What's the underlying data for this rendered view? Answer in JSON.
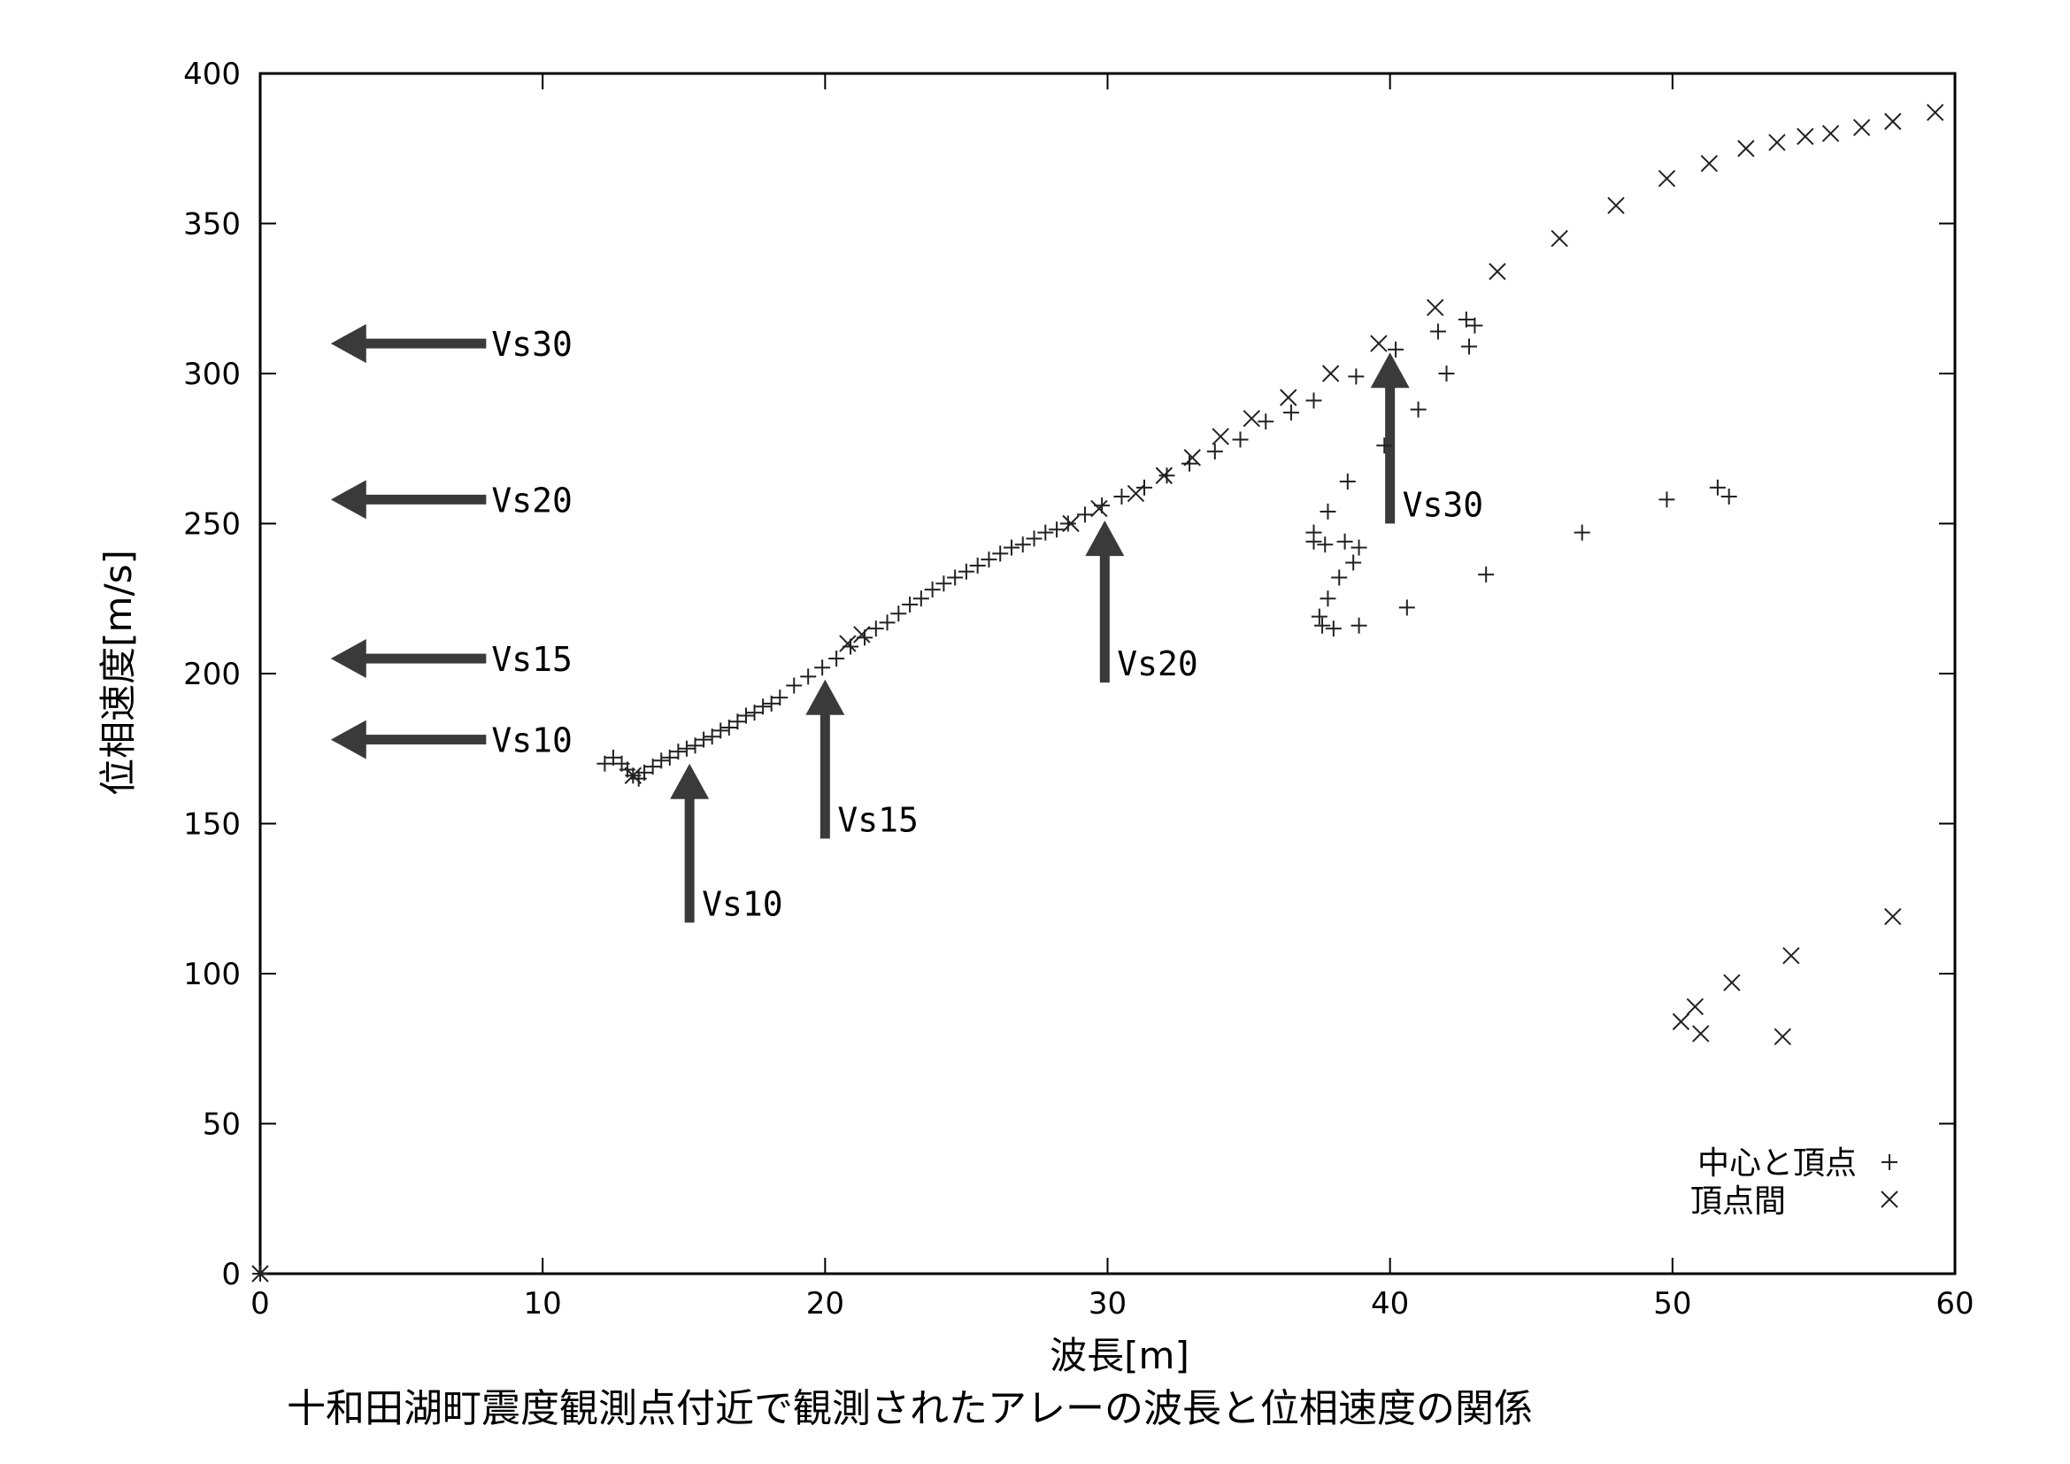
{
  "chart_data": {
    "type": "scatter",
    "title": "",
    "caption": "十和田湖町震度観測点付近で観測されたアレーの波長と位相速度の関係",
    "xlabel": "波長[m]",
    "ylabel": "位相速度[m/s]",
    "xlim": [
      0,
      60
    ],
    "ylim": [
      0,
      400
    ],
    "xticks": [
      "0",
      "10",
      "20",
      "30",
      "40",
      "50",
      "60"
    ],
    "yticks": [
      "0",
      "50",
      "100",
      "150",
      "200",
      "250",
      "300",
      "350",
      "400"
    ],
    "grid": false,
    "legend_position": "bottom-right",
    "series": [
      {
        "name": "中心と頂点",
        "marker": "+",
        "points": [
          [
            0,
            0
          ],
          [
            12.2,
            170
          ],
          [
            12.5,
            172
          ],
          [
            12.8,
            170
          ],
          [
            13.0,
            168
          ],
          [
            13.2,
            166
          ],
          [
            13.4,
            165
          ],
          [
            13.6,
            167
          ],
          [
            13.9,
            169
          ],
          [
            14.2,
            171
          ],
          [
            14.5,
            172
          ],
          [
            14.8,
            174
          ],
          [
            15.1,
            175
          ],
          [
            15.4,
            176
          ],
          [
            15.7,
            178
          ],
          [
            16.0,
            179
          ],
          [
            16.3,
            181
          ],
          [
            16.6,
            182
          ],
          [
            16.9,
            184
          ],
          [
            17.2,
            186
          ],
          [
            17.5,
            187
          ],
          [
            17.8,
            189
          ],
          [
            18.1,
            190
          ],
          [
            18.4,
            192
          ],
          [
            18.9,
            196
          ],
          [
            19.4,
            199
          ],
          [
            19.9,
            202
          ],
          [
            20.4,
            205
          ],
          [
            20.9,
            209
          ],
          [
            21.4,
            212
          ],
          [
            21.8,
            215
          ],
          [
            22.2,
            217
          ],
          [
            22.6,
            220
          ],
          [
            23.0,
            223
          ],
          [
            23.4,
            225
          ],
          [
            23.8,
            228
          ],
          [
            24.2,
            230
          ],
          [
            24.6,
            232
          ],
          [
            25.0,
            234
          ],
          [
            25.4,
            236
          ],
          [
            25.8,
            238
          ],
          [
            26.2,
            240
          ],
          [
            26.6,
            242
          ],
          [
            27.0,
            243
          ],
          [
            27.4,
            245
          ],
          [
            27.8,
            247
          ],
          [
            28.2,
            248
          ],
          [
            28.6,
            250
          ],
          [
            29.2,
            253
          ],
          [
            29.8,
            256
          ],
          [
            30.5,
            259
          ],
          [
            31.3,
            262
          ],
          [
            32.1,
            266
          ],
          [
            32.9,
            270
          ],
          [
            33.8,
            274
          ],
          [
            34.7,
            278
          ],
          [
            35.6,
            284
          ],
          [
            36.5,
            287
          ],
          [
            37.3,
            291
          ],
          [
            37.3,
            247
          ],
          [
            37.3,
            244
          ],
          [
            37.5,
            219
          ],
          [
            37.6,
            216
          ],
          [
            37.7,
            243
          ],
          [
            37.8,
            225
          ],
          [
            37.8,
            254
          ],
          [
            38.0,
            215
          ],
          [
            38.2,
            232
          ],
          [
            38.4,
            244
          ],
          [
            38.5,
            264
          ],
          [
            38.7,
            237
          ],
          [
            38.9,
            242
          ],
          [
            38.9,
            216
          ],
          [
            38.8,
            299
          ],
          [
            39.8,
            276
          ],
          [
            40.2,
            308
          ],
          [
            40.6,
            222
          ],
          [
            41.0,
            288
          ],
          [
            41.7,
            314
          ],
          [
            42.0,
            300
          ],
          [
            42.7,
            318
          ],
          [
            42.8,
            309
          ],
          [
            43.0,
            316
          ],
          [
            43.4,
            233
          ],
          [
            46.8,
            247
          ],
          [
            49.8,
            258
          ],
          [
            51.6,
            262
          ],
          [
            52.0,
            259
          ]
        ]
      },
      {
        "name": "頂点間",
        "marker": "x",
        "points": [
          [
            0,
            0
          ],
          [
            13.2,
            166
          ],
          [
            20.8,
            210
          ],
          [
            21.3,
            213
          ],
          [
            28.7,
            250
          ],
          [
            29.7,
            255
          ],
          [
            31.0,
            260
          ],
          [
            32.0,
            266
          ],
          [
            33.0,
            272
          ],
          [
            34.0,
            279
          ],
          [
            35.1,
            285
          ],
          [
            36.4,
            292
          ],
          [
            37.9,
            300
          ],
          [
            39.6,
            310
          ],
          [
            41.6,
            322
          ],
          [
            43.8,
            334
          ],
          [
            46.0,
            345
          ],
          [
            48.0,
            356
          ],
          [
            49.8,
            365
          ],
          [
            51.3,
            370
          ],
          [
            52.6,
            375
          ],
          [
            53.7,
            377
          ],
          [
            54.7,
            379
          ],
          [
            55.6,
            380
          ],
          [
            56.7,
            382
          ],
          [
            57.8,
            384
          ],
          [
            59.3,
            387
          ],
          [
            50.3,
            84
          ],
          [
            50.8,
            89
          ],
          [
            51.0,
            80
          ],
          [
            52.1,
            97
          ],
          [
            53.9,
            79
          ],
          [
            54.2,
            106
          ],
          [
            57.8,
            119
          ]
        ]
      }
    ],
    "annotations": [
      {
        "label": "Vs30",
        "direction": "left",
        "x_from": 8,
        "x_to": 2.5,
        "y": 310
      },
      {
        "label": "Vs20",
        "direction": "left",
        "x_from": 8,
        "x_to": 2.5,
        "y": 258
      },
      {
        "label": "Vs15",
        "direction": "left",
        "x_from": 8,
        "x_to": 2.5,
        "y": 205
      },
      {
        "label": "Vs10",
        "direction": "left",
        "x_from": 8,
        "x_to": 2.5,
        "y": 178
      },
      {
        "label": "Vs10",
        "direction": "up",
        "x": 15.2,
        "y_from": 117,
        "y_to": 170
      },
      {
        "label": "Vs15",
        "direction": "up",
        "x": 20.0,
        "y_from": 145,
        "y_to": 198
      },
      {
        "label": "Vs20",
        "direction": "up",
        "x": 29.9,
        "y_from": 197,
        "y_to": 251
      },
      {
        "label": "Vs30",
        "direction": "up",
        "x": 40.0,
        "y_from": 250,
        "y_to": 307
      }
    ]
  }
}
